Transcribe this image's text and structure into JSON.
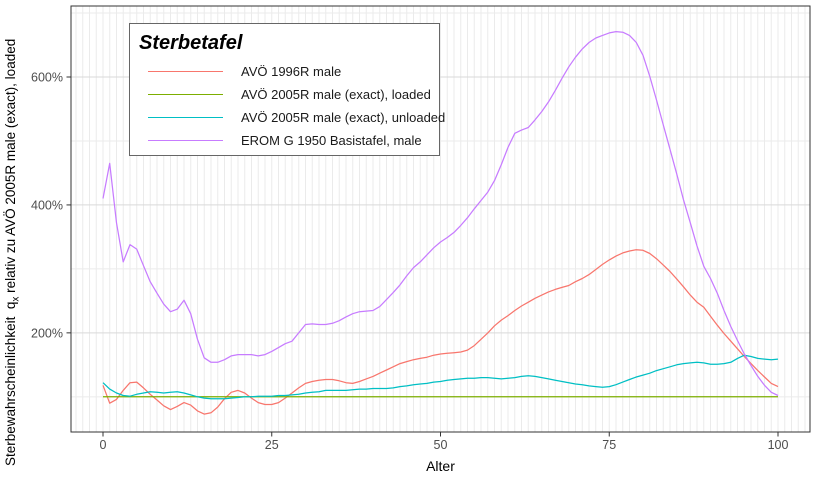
{
  "chart_data": {
    "type": "line",
    "legend_title": "Sterbetafel",
    "xlabel": "Alter",
    "ylabel": {
      "prefix": "Sterbewahrscheinlichkeit  q",
      "sub": "x",
      "suffix": " relativ zu AVÖ 2005R male (exact), loaded"
    },
    "x_ticks": [
      0,
      25,
      50,
      75,
      100
    ],
    "y_ticks": [
      {
        "value": 200,
        "label": "200%"
      },
      {
        "value": 400,
        "label": "400%"
      },
      {
        "value": 600,
        "label": "600%"
      }
    ],
    "y_minor": [
      100,
      300,
      500,
      700
    ],
    "x_minor_step": 1,
    "xlim": [
      -4.74,
      104.74
    ],
    "ylim": [
      45,
      711
    ],
    "grid": true,
    "legend_position": "top-left-inside",
    "panel_border_color": "#333333",
    "grid_major_color": "#d9d9d9",
    "grid_minor_color": "#ebebeb",
    "tick_label_color": "#4d4d4d",
    "x": [
      0,
      1,
      2,
      3,
      4,
      5,
      6,
      7,
      8,
      9,
      10,
      11,
      12,
      13,
      14,
      15,
      16,
      17,
      18,
      19,
      20,
      21,
      22,
      23,
      24,
      25,
      26,
      27,
      28,
      29,
      30,
      31,
      32,
      33,
      34,
      35,
      36,
      37,
      38,
      39,
      40,
      41,
      42,
      43,
      44,
      45,
      46,
      47,
      48,
      49,
      50,
      51,
      52,
      53,
      54,
      55,
      56,
      57,
      58,
      59,
      60,
      61,
      62,
      63,
      64,
      65,
      66,
      67,
      68,
      69,
      70,
      71,
      72,
      73,
      74,
      75,
      76,
      77,
      78,
      79,
      80,
      81,
      82,
      83,
      84,
      85,
      86,
      87,
      88,
      89,
      90,
      91,
      92,
      93,
      94,
      95,
      96,
      97,
      98,
      99,
      100
    ],
    "series": [
      {
        "name": "AVÖ 1996R male",
        "color": "#F8766D",
        "values": [
          118,
          90,
          96,
          110,
          122,
          123,
          114,
          104,
          95,
          86,
          80,
          85,
          91,
          87,
          78,
          73,
          75,
          84,
          97,
          107,
          110,
          106,
          98,
          91,
          88,
          88,
          91,
          98,
          106,
          114,
          121,
          124,
          126,
          127,
          127,
          125,
          122,
          121,
          124,
          128,
          132,
          137,
          142,
          147,
          152,
          155,
          158,
          160,
          162,
          165,
          167,
          168,
          169,
          170,
          173,
          180,
          190,
          200,
          211,
          220,
          227,
          235,
          242,
          248,
          254,
          259,
          264,
          268,
          271,
          274,
          280,
          285,
          291,
          299,
          307,
          314,
          320,
          325,
          328,
          330,
          329,
          324,
          316,
          306,
          296,
          284,
          272,
          259,
          248,
          240,
          226,
          212,
          199,
          187,
          175,
          163,
          152,
          141,
          131,
          121,
          116
        ]
      },
      {
        "name": "AVÖ 2005R male (exact), loaded",
        "color": "#7CAE00",
        "values": [
          100,
          100,
          100,
          100,
          100,
          100,
          100,
          100,
          100,
          100,
          100,
          100,
          100,
          100,
          100,
          100,
          100,
          100,
          100,
          100,
          100,
          100,
          100,
          100,
          100,
          100,
          100,
          100,
          100,
          100,
          100,
          100,
          100,
          100,
          100,
          100,
          100,
          100,
          100,
          100,
          100,
          100,
          100,
          100,
          100,
          100,
          100,
          100,
          100,
          100,
          100,
          100,
          100,
          100,
          100,
          100,
          100,
          100,
          100,
          100,
          100,
          100,
          100,
          100,
          100,
          100,
          100,
          100,
          100,
          100,
          100,
          100,
          100,
          100,
          100,
          100,
          100,
          100,
          100,
          100,
          100,
          100,
          100,
          100,
          100,
          100,
          100,
          100,
          100,
          100,
          100,
          100,
          100,
          100,
          100,
          100,
          100,
          100,
          100,
          100,
          100
        ]
      },
      {
        "name": "AVÖ 2005R male (exact), unloaded",
        "color": "#00BFC4",
        "values": [
          122,
          112,
          106,
          102,
          101,
          104,
          106,
          108,
          107,
          106,
          107,
          108,
          106,
          103,
          100,
          98,
          97,
          97,
          97,
          98,
          99,
          100,
          100,
          101,
          101,
          101,
          102,
          102,
          103,
          104,
          106,
          107,
          108,
          110,
          110,
          110,
          110,
          111,
          112,
          112,
          113,
          113,
          113,
          114,
          116,
          117,
          119,
          120,
          121,
          123,
          124,
          126,
          127,
          128,
          129,
          129,
          130,
          130,
          129,
          128,
          129,
          130,
          132,
          133,
          132,
          130,
          128,
          126,
          124,
          122,
          120,
          119,
          117,
          116,
          115,
          116,
          119,
          123,
          127,
          131,
          134,
          137,
          141,
          144,
          147,
          150,
          152,
          153,
          154,
          153,
          151,
          151,
          152,
          154,
          160,
          165,
          163,
          160,
          159,
          158,
          159
        ]
      },
      {
        "name": "EROM G 1950 Basistafel, male",
        "color": "#C77CFF",
        "values": [
          410,
          465,
          372,
          311,
          338,
          331,
          305,
          280,
          262,
          245,
          233,
          237,
          251,
          230,
          190,
          161,
          154,
          154,
          158,
          164,
          166,
          166,
          166,
          164,
          166,
          171,
          177,
          183,
          187,
          200,
          213,
          214,
          213,
          213,
          215,
          219,
          225,
          230,
          233,
          234,
          235,
          241,
          252,
          263,
          275,
          289,
          302,
          311,
          322,
          333,
          342,
          349,
          357,
          368,
          380,
          394,
          407,
          420,
          438,
          463,
          490,
          512,
          517,
          521,
          533,
          546,
          561,
          579,
          598,
          616,
          631,
          644,
          654,
          661,
          665,
          669,
          671,
          670,
          665,
          654,
          634,
          601,
          564,
          525,
          487,
          448,
          408,
          372,
          336,
          304,
          285,
          262,
          235,
          210,
          188,
          167,
          149,
          132,
          118,
          107,
          102
        ]
      }
    ]
  }
}
